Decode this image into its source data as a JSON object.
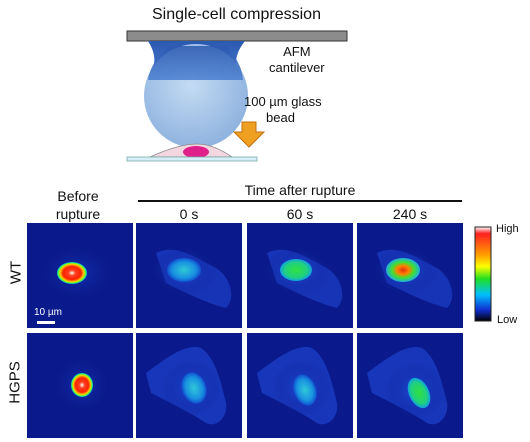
{
  "figure": {
    "title": "Single-cell compression",
    "afm_label_line1": "AFM",
    "afm_label_line2": "cantilever",
    "bead_label_line1": "100 µm glass",
    "bead_label_line2": "bead",
    "before_line1": "Before",
    "before_line2": "rupture",
    "time_header": "Time after rupture",
    "time_0": "0 s",
    "time_60": "60 s",
    "time_240": "240 s",
    "row_wt": "WT",
    "row_hgps": "HGPS",
    "scale_bar": "10 µm",
    "colorbar_high": "High",
    "colorbar_low": "Low"
  },
  "colors": {
    "panel_background": "#0a1a8c",
    "cantilever": "#8a8a8a",
    "cone_dark": "#2f5fb8",
    "bead": "#a9c8ea",
    "arrow": "#f0a020",
    "nucleus": "#e0208a"
  }
}
